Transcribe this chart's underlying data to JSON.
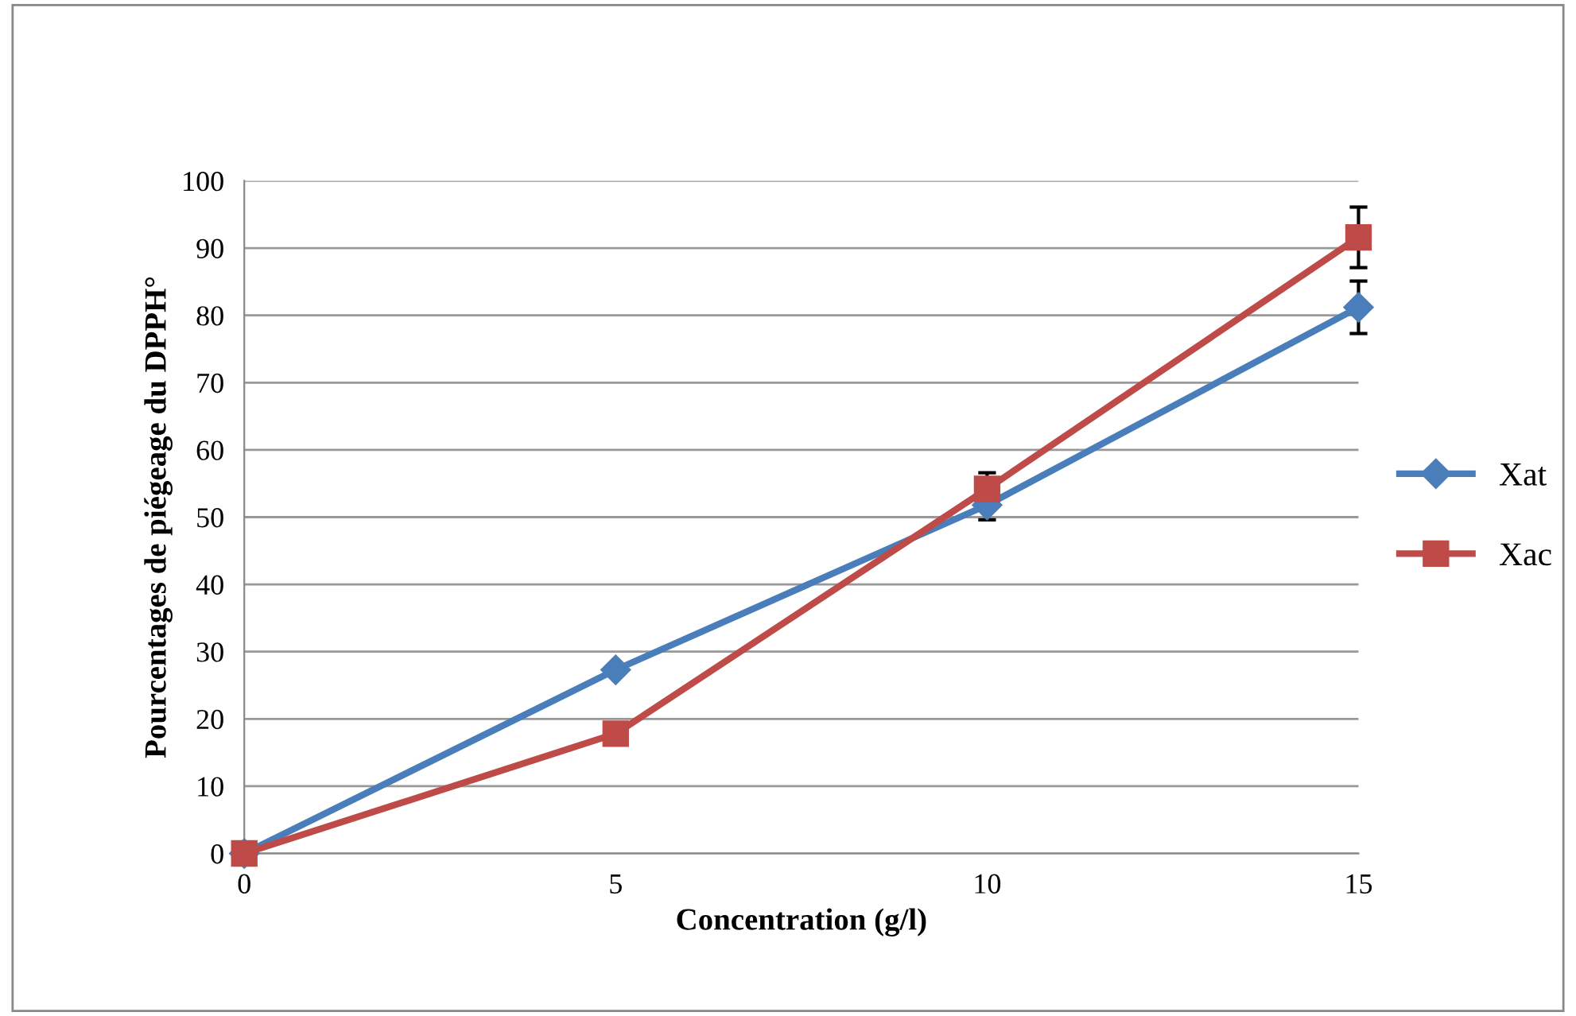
{
  "chart_data": {
    "type": "line",
    "xlabel": "Concentration (g/l)",
    "ylabel": "Pourcentages de piégeage du DPPH°",
    "x": [
      0,
      5,
      10,
      15
    ],
    "series": [
      {
        "name": "Xat",
        "color": "#4a7ebb",
        "values": [
          0,
          27.3,
          51.8,
          81.2
        ],
        "errors": [
          null,
          null,
          2.2,
          3.9
        ],
        "marker": "diamond"
      },
      {
        "name": "Xac",
        "color": "#be4b48",
        "values": [
          0,
          17.8,
          54.2,
          91.6
        ],
        "errors": [
          null,
          null,
          2.4,
          4.5
        ],
        "marker": "square"
      }
    ],
    "xlim": [
      0,
      15
    ],
    "xticks": [
      0,
      5,
      10,
      15
    ],
    "ylim": [
      0,
      100
    ],
    "yticks": [
      0,
      10,
      20,
      30,
      40,
      50,
      60,
      70,
      80,
      90,
      100
    ],
    "grid": "y",
    "legend": "right",
    "line_style": "solid"
  }
}
